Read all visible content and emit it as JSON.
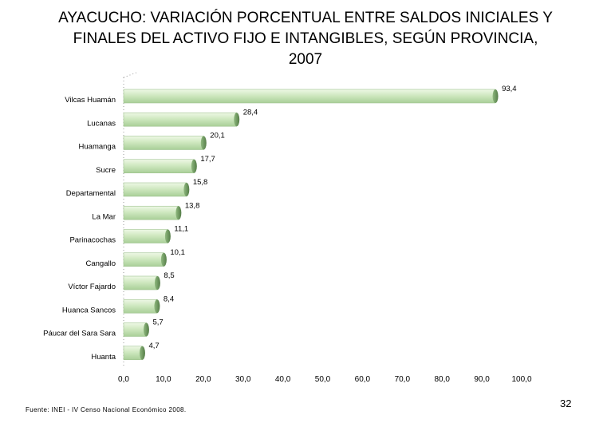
{
  "header": {
    "title_line1": "AYACUCHO: VARIACIÓN PORCENTUAL ENTRE SALDOS INICIALES Y",
    "title_line2": "FINALES DEL ACTIVO FIJO E INTANGIBLES, SEGÚN PROVINCIA,",
    "title_line3": "2007"
  },
  "chart_data": {
    "type": "bar",
    "orientation": "horizontal",
    "title": "AYACUCHO: VARIACIÓN PORCENTUAL ENTRE SALDOS INICIALES Y FINALES DEL ACTIVO FIJO E INTANGIBLES, SEGÚN PROVINCIA, 2007",
    "categories": [
      "Vilcas Huamán",
      "Lucanas",
      "Huamanga",
      "Sucre",
      "Departamental",
      "La Mar",
      "Parinacochas",
      "Cangallo",
      "Víctor Fajardo",
      "Huanca Sancos",
      "Páucar del Sara Sara",
      "Huanta"
    ],
    "values": [
      93.4,
      28.4,
      20.1,
      17.7,
      15.8,
      13.8,
      11.1,
      10.1,
      8.5,
      8.4,
      5.7,
      4.7
    ],
    "value_labels": [
      "93,4",
      "28,4",
      "20,1",
      "17,7",
      "15,8",
      "13,8",
      "11,1",
      "10,1",
      "8,5",
      "8,4",
      "5,7",
      "4,7"
    ],
    "xlim": [
      0,
      100
    ],
    "xticks": [
      "0,0",
      "10,0",
      "20,0",
      "30,0",
      "40,0",
      "50,0",
      "60,0",
      "70,0",
      "80,0",
      "90,0",
      "100,0"
    ],
    "xlabel": "",
    "ylabel": "",
    "bar_color": "#cfe8c0",
    "bar_end_color": "#6e9a60"
  },
  "footer": {
    "source": "Fuente: INEI - IV Censo Nacional Económico 2008.",
    "page_number": "32"
  }
}
